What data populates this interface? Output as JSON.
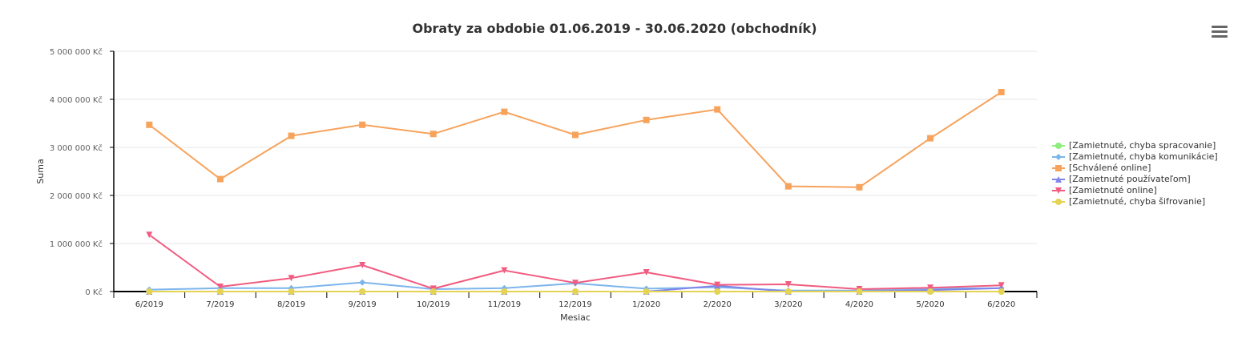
{
  "title": "Obraty za obdobie 01.06.2019 - 30.06.2020 (obchodník)",
  "menu_icon": "hamburger-menu-icon",
  "chart_data": {
    "type": "line",
    "title": "Obraty za obdobie 01.06.2019 - 30.06.2020 (obchodník)",
    "xlabel": "Mesiac",
    "ylabel": "Suma",
    "ylim": [
      0,
      5000000
    ],
    "yticks": [
      0,
      1000000,
      2000000,
      3000000,
      4000000,
      5000000
    ],
    "ytick_labels": [
      "0 Kč",
      "1 000 000 Kč",
      "2 000 000 Kč",
      "3 000 000 Kč",
      "4 000 000 Kč",
      "5 000 000 Kč"
    ],
    "categories": [
      "6/2019",
      "7/2019",
      "8/2019",
      "9/2019",
      "10/2019",
      "11/2019",
      "12/2019",
      "1/2020",
      "2/2020",
      "3/2020",
      "4/2020",
      "5/2020",
      "6/2020"
    ],
    "grid": true,
    "legend_position": "right",
    "series": [
      {
        "name": "[Zamietnuté, chyba spracovanie]",
        "color": "#90ed7d",
        "marker": "circle",
        "values": [
          0,
          0,
          0,
          0,
          0,
          0,
          0,
          0,
          0,
          0,
          0,
          0,
          0
        ]
      },
      {
        "name": "[Zamietnuté, chyba komunikácie]",
        "color": "#7cb5ec",
        "marker": "diamond",
        "values": [
          40000,
          70000,
          70000,
          190000,
          50000,
          70000,
          170000,
          60000,
          90000,
          20000,
          20000,
          60000,
          70000
        ]
      },
      {
        "name": "[Schválené online]",
        "color": "#f7a35c",
        "marker": "square",
        "values": [
          3470000,
          2340000,
          3240000,
          3470000,
          3280000,
          3740000,
          3260000,
          3570000,
          3790000,
          2190000,
          2170000,
          3190000,
          4150000
        ]
      },
      {
        "name": "[Zamietnuté používateľom]",
        "color": "#8085e9",
        "marker": "triangle",
        "values": [
          0,
          0,
          0,
          0,
          0,
          0,
          0,
          0,
          120000,
          0,
          0,
          30000,
          70000
        ]
      },
      {
        "name": "[Zamietnuté online]",
        "color": "#f15c80",
        "marker": "triangle-down",
        "values": [
          1180000,
          100000,
          280000,
          550000,
          60000,
          440000,
          180000,
          400000,
          140000,
          150000,
          50000,
          80000,
          130000
        ]
      },
      {
        "name": "[Zamietnuté, chyba šifrovanie]",
        "color": "#e4d354",
        "marker": "circle",
        "values": [
          0,
          0,
          0,
          0,
          0,
          0,
          0,
          0,
          0,
          0,
          0,
          0,
          0
        ]
      }
    ]
  }
}
